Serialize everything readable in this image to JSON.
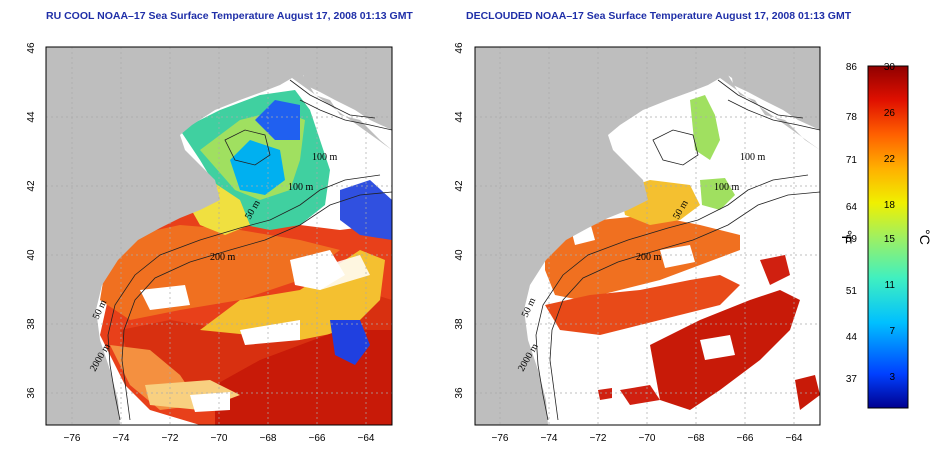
{
  "panels": [
    {
      "title": "RU COOL NOAA–17 Sea Surface Temperature August 17, 2008 01:13 GMT",
      "contour_labels": [
        "100 m",
        "100 m",
        "50 m",
        "200 m",
        "50 m",
        "2000 m"
      ]
    },
    {
      "title": "DECLOUDED NOAA–17 Sea Surface Temperature August 17, 2008 01:13 GMT",
      "contour_labels": [
        "100 m",
        "100 m",
        "50 m",
        "200 m",
        "50 m",
        "2000 m"
      ]
    }
  ],
  "axes": {
    "x_ticks": [
      "−76",
      "−74",
      "−72",
      "−70",
      "−68",
      "−66",
      "−64"
    ],
    "y_ticks": [
      "46",
      "44",
      "42",
      "40",
      "38",
      "36"
    ]
  },
  "colorbar": {
    "fahrenheit_ticks": [
      "86",
      "78",
      "71",
      "64",
      "59",
      "51",
      "44",
      "37"
    ],
    "celsius_ticks": [
      "30",
      "26",
      "22",
      "18",
      "15",
      "11",
      "7",
      "3"
    ],
    "left_unit": "°F",
    "right_unit": "°C",
    "colors": [
      "#000090",
      "#0040ff",
      "#00c0ff",
      "#40f0c0",
      "#a0f060",
      "#f0f000",
      "#ffb000",
      "#ff6000",
      "#e01000",
      "#900000"
    ]
  },
  "colors": {
    "land": "#bebebe",
    "title": "#1f2fa8"
  }
}
